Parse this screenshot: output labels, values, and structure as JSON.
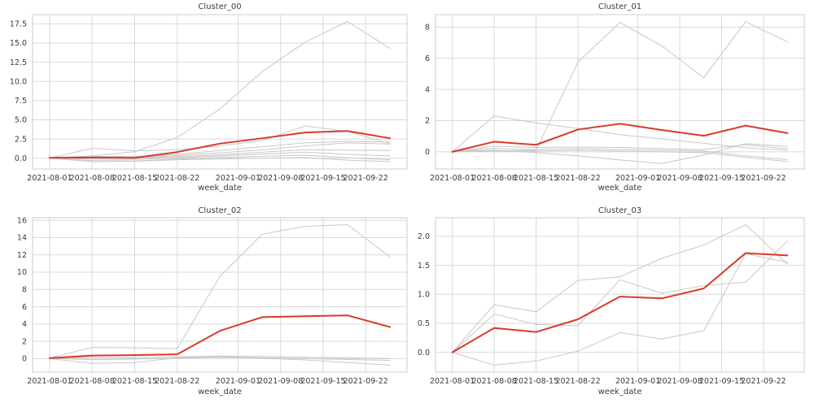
{
  "style": {
    "background_color": "#ffffff",
    "grid_color": "#d9d9d9",
    "frame_color": "#cccccc",
    "text_color": "#3a3a3a",
    "highlight_color": "#d93a2b",
    "member_color": "#c7c7c7"
  },
  "chart_data": [
    {
      "type": "line",
      "title": "Cluster_00",
      "xlabel": "week_date",
      "legend": "none",
      "grid": true,
      "x_week_offsets": [
        0,
        7,
        14,
        21,
        28,
        35,
        42,
        49,
        56
      ],
      "xlim": [
        -2.8,
        58.8
      ],
      "xtick_positions": [
        0,
        7,
        14,
        21,
        31,
        38,
        45,
        52
      ],
      "xtick_labels": [
        "2021-08-01",
        "2021-08-08",
        "2021-08-15",
        "2021-08-22",
        "2021-09-01",
        "2021-09-08",
        "2021-09-15",
        "2021-09-22"
      ],
      "ylim": [
        -1.4,
        18.7
      ],
      "ytick_values": [
        0.0,
        2.5,
        5.0,
        7.5,
        10.0,
        12.5,
        15.0,
        17.5
      ],
      "ytick_labels": [
        "0.0",
        "2.5",
        "5.0",
        "7.5",
        "10.0",
        "12.5",
        "15.0",
        "17.5"
      ],
      "series": [
        {
          "name": "member-1",
          "role": "member",
          "color": "#c7c7c7",
          "line_width": 1,
          "values": [
            0.05,
            0.3,
            0.85,
            2.7,
            6.4,
            11.3,
            15.1,
            17.8,
            14.3
          ]
        },
        {
          "name": "member-2",
          "role": "member",
          "color": "#c7c7c7",
          "line_width": 1,
          "values": [
            0.0,
            1.3,
            0.95,
            1.1,
            1.6,
            2.3,
            4.2,
            3.5,
            1.9
          ]
        },
        {
          "name": "member-3",
          "role": "member",
          "color": "#c7c7c7",
          "line_width": 1,
          "values": [
            0.0,
            0.25,
            0.2,
            0.5,
            1.0,
            1.5,
            2.0,
            2.2,
            2.1
          ]
        },
        {
          "name": "member-4",
          "role": "member",
          "color": "#c7c7c7",
          "line_width": 1,
          "values": [
            0.0,
            0.15,
            0.1,
            0.35,
            0.7,
            1.1,
            1.6,
            2.0,
            1.85
          ]
        },
        {
          "name": "member-5",
          "role": "member",
          "color": "#c7c7c7",
          "line_width": 1,
          "values": [
            0.0,
            0.05,
            0.0,
            0.2,
            0.45,
            0.8,
            1.1,
            1.05,
            1.0
          ]
        },
        {
          "name": "member-6",
          "role": "member",
          "color": "#c7c7c7",
          "line_width": 1,
          "values": [
            0.0,
            -0.1,
            -0.15,
            0.05,
            0.3,
            0.55,
            0.8,
            0.5,
            0.3
          ]
        },
        {
          "name": "member-7",
          "role": "member",
          "color": "#c7c7c7",
          "line_width": 1,
          "values": [
            0.0,
            -0.3,
            -0.35,
            -0.1,
            0.1,
            0.25,
            0.4,
            0.05,
            -0.2
          ]
        },
        {
          "name": "member-8",
          "role": "member",
          "color": "#c7c7c7",
          "line_width": 1,
          "values": [
            0.0,
            -0.45,
            -0.4,
            -0.2,
            -0.1,
            0.0,
            0.1,
            -0.25,
            -0.45
          ]
        },
        {
          "name": "cluster-highlight",
          "role": "highlight",
          "color": "#d93a2b",
          "line_width": 2,
          "values": [
            0.05,
            0.1,
            0.05,
            0.8,
            1.9,
            2.6,
            3.35,
            3.55,
            2.6
          ]
        }
      ]
    },
    {
      "type": "line",
      "title": "Cluster_01",
      "xlabel": "week_date",
      "legend": "none",
      "grid": true,
      "x_week_offsets": [
        0,
        7,
        14,
        21,
        28,
        35,
        42,
        49,
        56
      ],
      "xlim": [
        -2.8,
        58.8
      ],
      "xtick_positions": [
        0,
        7,
        14,
        21,
        31,
        38,
        45,
        52
      ],
      "xtick_labels": [
        "2021-08-01",
        "2021-08-08",
        "2021-08-15",
        "2021-08-22",
        "2021-09-01",
        "2021-09-08",
        "2021-09-15",
        "2021-09-22"
      ],
      "ylim": [
        -1.1,
        8.8
      ],
      "ytick_values": [
        0,
        2,
        4,
        6,
        8
      ],
      "ytick_labels": [
        "0",
        "2",
        "4",
        "6",
        "8"
      ],
      "series": [
        {
          "name": "member-1",
          "role": "member",
          "color": "#c7c7c7",
          "line_width": 1,
          "values": [
            0.0,
            0.05,
            0.1,
            5.75,
            8.3,
            6.8,
            4.75,
            8.35,
            7.05
          ]
        },
        {
          "name": "member-2",
          "role": "member",
          "color": "#c7c7c7",
          "line_width": 1,
          "values": [
            0.0,
            2.3,
            1.85,
            1.5,
            1.1,
            0.83,
            0.55,
            0.26,
            0.1
          ]
        },
        {
          "name": "member-3",
          "role": "member",
          "color": "#c7c7c7",
          "line_width": 1,
          "values": [
            0.0,
            0.1,
            -0.05,
            -0.26,
            -0.52,
            -0.75,
            -0.2,
            0.52,
            0.35
          ]
        },
        {
          "name": "member-4",
          "role": "member",
          "color": "#c7c7c7",
          "line_width": 1,
          "values": [
            0.0,
            0.35,
            0.28,
            0.3,
            0.28,
            0.2,
            0.15,
            0.45,
            0.2
          ]
        },
        {
          "name": "member-5",
          "role": "member",
          "color": "#c7c7c7",
          "line_width": 1,
          "values": [
            0.0,
            0.2,
            0.15,
            0.2,
            0.15,
            0.1,
            0.05,
            -0.25,
            -0.5
          ]
        },
        {
          "name": "member-6",
          "role": "member",
          "color": "#c7c7c7",
          "line_width": 1,
          "values": [
            0.0,
            0.05,
            0.05,
            0.1,
            0.05,
            0.0,
            -0.05,
            -0.35,
            -0.62
          ]
        },
        {
          "name": "cluster-highlight",
          "role": "highlight",
          "color": "#d93a2b",
          "line_width": 2,
          "values": [
            0.0,
            0.65,
            0.45,
            1.43,
            1.8,
            1.4,
            1.03,
            1.68,
            1.2
          ]
        }
      ]
    },
    {
      "type": "line",
      "title": "Cluster_02",
      "xlabel": "week_date",
      "legend": "none",
      "grid": true,
      "x_week_offsets": [
        0,
        7,
        14,
        21,
        28,
        35,
        42,
        49,
        56
      ],
      "xlim": [
        -2.8,
        58.8
      ],
      "xtick_positions": [
        0,
        7,
        14,
        21,
        31,
        38,
        45,
        52
      ],
      "xtick_labels": [
        "2021-08-01",
        "2021-08-08",
        "2021-08-15",
        "2021-08-22",
        "2021-09-01",
        "2021-09-08",
        "2021-09-15",
        "2021-09-22"
      ],
      "ylim": [
        -1.56,
        16.3
      ],
      "ytick_values": [
        0,
        2,
        4,
        6,
        8,
        10,
        12,
        14,
        16
      ],
      "ytick_labels": [
        "0",
        "2",
        "4",
        "6",
        "8",
        "10",
        "12",
        "14",
        "16"
      ],
      "series": [
        {
          "name": "member-1",
          "role": "member",
          "color": "#c7c7c7",
          "line_width": 1,
          "values": [
            0.05,
            1.3,
            1.25,
            1.15,
            9.5,
            14.4,
            15.3,
            15.5,
            11.75
          ]
        },
        {
          "name": "member-2",
          "role": "member",
          "color": "#c7c7c7",
          "line_width": 1,
          "values": [
            0.0,
            -0.55,
            -0.45,
            0.1,
            0.2,
            0.1,
            0.0,
            -0.1,
            -0.2
          ]
        },
        {
          "name": "member-3",
          "role": "member",
          "color": "#c7c7c7",
          "line_width": 1,
          "values": [
            0.0,
            -0.1,
            -0.05,
            0.05,
            0.15,
            0.05,
            -0.15,
            -0.45,
            -0.75
          ]
        },
        {
          "name": "member-4",
          "role": "member",
          "color": "#c7c7c7",
          "line_width": 1,
          "values": [
            0.05,
            0.15,
            0.1,
            0.2,
            0.3,
            0.25,
            0.15,
            0.1,
            0.0
          ]
        },
        {
          "name": "cluster-highlight",
          "role": "highlight",
          "color": "#d93a2b",
          "line_width": 2,
          "values": [
            0.05,
            0.35,
            0.4,
            0.5,
            3.2,
            4.8,
            4.9,
            5.0,
            3.65
          ]
        }
      ]
    },
    {
      "type": "line",
      "title": "Cluster_03",
      "xlabel": "week_date",
      "legend": "none",
      "grid": true,
      "x_week_offsets": [
        0,
        7,
        14,
        21,
        28,
        35,
        42,
        49,
        56
      ],
      "xlim": [
        -2.8,
        58.8
      ],
      "xtick_positions": [
        0,
        7,
        14,
        21,
        31,
        38,
        45,
        52
      ],
      "xtick_labels": [
        "2021-08-01",
        "2021-08-08",
        "2021-08-15",
        "2021-08-22",
        "2021-09-01",
        "2021-09-08",
        "2021-09-15",
        "2021-09-22"
      ],
      "ylim": [
        -0.34,
        2.32
      ],
      "ytick_values": [
        0.0,
        0.5,
        1.0,
        1.5,
        2.0
      ],
      "ytick_labels": [
        "0.0",
        "0.5",
        "1.0",
        "1.5",
        "2.0"
      ],
      "series": [
        {
          "name": "member-1",
          "role": "member",
          "color": "#c7c7c7",
          "line_width": 1,
          "values": [
            0.0,
            0.82,
            0.7,
            1.24,
            1.3,
            1.62,
            1.85,
            2.2,
            1.52
          ]
        },
        {
          "name": "member-2",
          "role": "member",
          "color": "#c7c7c7",
          "line_width": 1,
          "values": [
            0.0,
            0.66,
            0.48,
            0.46,
            1.25,
            1.02,
            1.15,
            1.21,
            1.92
          ]
        },
        {
          "name": "member-3",
          "role": "member",
          "color": "#c7c7c7",
          "line_width": 1,
          "values": [
            0.0,
            -0.22,
            -0.15,
            0.02,
            0.34,
            0.23,
            0.37,
            1.7,
            1.55
          ]
        },
        {
          "name": "cluster-highlight",
          "role": "highlight",
          "color": "#d93a2b",
          "line_width": 2,
          "values": [
            0.0,
            0.42,
            0.35,
            0.57,
            0.96,
            0.93,
            1.1,
            1.71,
            1.67
          ]
        }
      ]
    }
  ]
}
